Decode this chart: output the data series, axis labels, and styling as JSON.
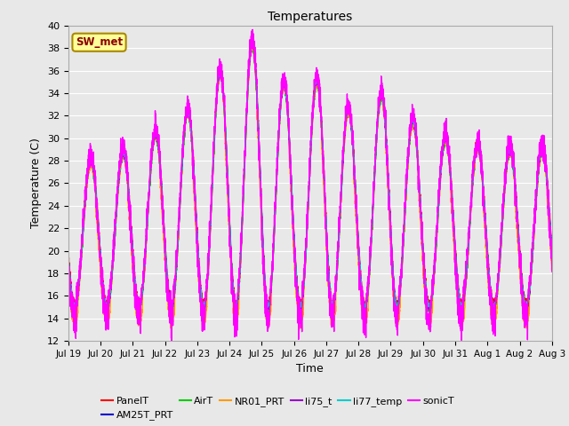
{
  "title": "Temperatures",
  "xlabel": "Time",
  "ylabel": "Temperature (C)",
  "ylim": [
    12,
    40
  ],
  "yticks": [
    12,
    14,
    16,
    18,
    20,
    22,
    24,
    26,
    28,
    30,
    32,
    34,
    36,
    38,
    40
  ],
  "bg_color": "#e8e8e8",
  "annotation_text": "SW_met",
  "annotation_bg": "#ffff99",
  "annotation_border": "#aa8800",
  "annotation_text_color": "#8b0000",
  "series": [
    {
      "name": "PanelT",
      "color": "#ff0000",
      "lw": 1.0
    },
    {
      "name": "AM25T_PRT",
      "color": "#0000cc",
      "lw": 1.0
    },
    {
      "name": "AirT",
      "color": "#00cc00",
      "lw": 1.0
    },
    {
      "name": "NR01_PRT",
      "color": "#ff9900",
      "lw": 1.0
    },
    {
      "name": "li75_t",
      "color": "#9900cc",
      "lw": 1.0
    },
    {
      "name": "li77_temp",
      "color": "#00cccc",
      "lw": 1.0
    },
    {
      "name": "sonicT",
      "color": "#ff00ff",
      "lw": 1.0
    }
  ],
  "n_days": 15,
  "samples_per_day": 288,
  "x_tick_labels": [
    "Jul 19",
    "Jul 20",
    "Jul 21",
    "Jul 22",
    "Jul 23",
    "Jul 24",
    "Jul 25",
    "Jul 26",
    "Jul 27",
    "Jul 28",
    "Jul 29",
    "Jul 30",
    "Jul 31",
    "Aug 1",
    "Aug 2",
    "Aug 3"
  ],
  "grid_color": "#ffffff",
  "grid_lw": 0.8,
  "figsize": [
    6.4,
    4.8
  ],
  "dpi": 100
}
